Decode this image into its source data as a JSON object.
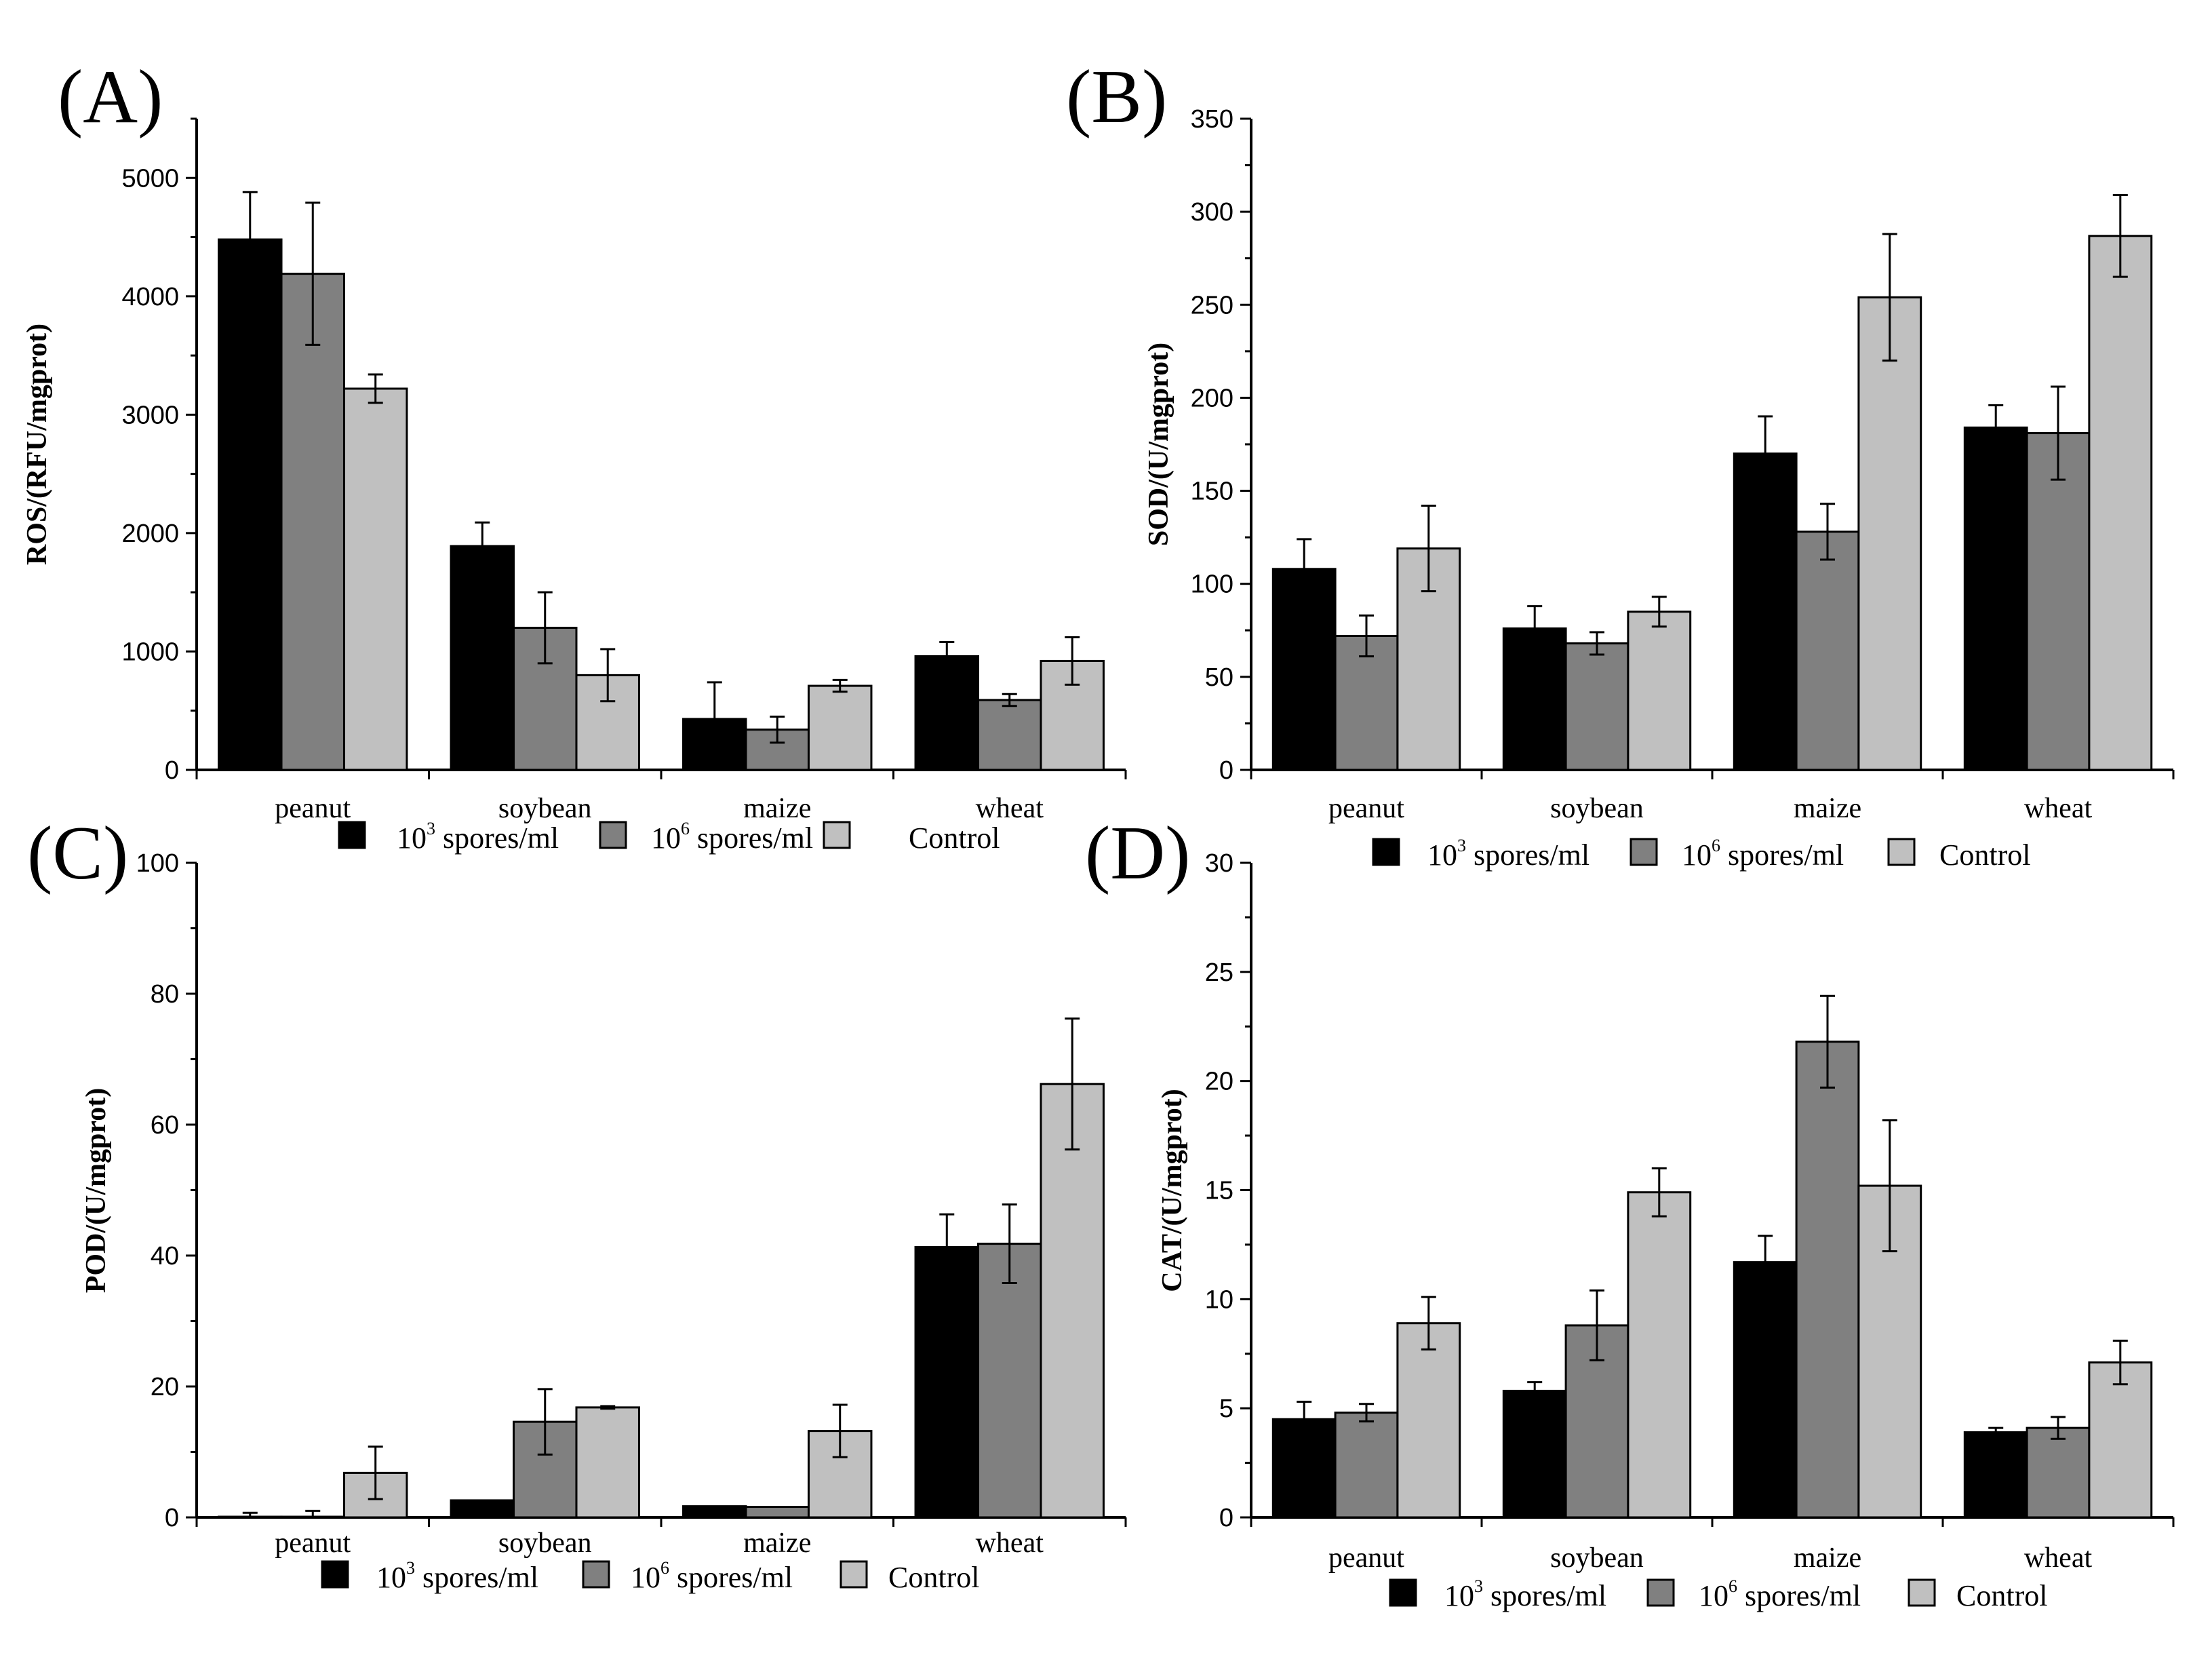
{
  "figure": {
    "colors": {
      "s1": "#000000",
      "s2": "#808080",
      "s3": "#c0c0c0"
    }
  },
  "chart_data": [
    {
      "type": "bar",
      "panel": "(A)",
      "ylabel": "ROS/(RFU/mgprot)",
      "categories": [
        "peanut",
        "soybean",
        "maize",
        "wheat"
      ],
      "ylim": [
        0,
        5500
      ],
      "yticks": [
        0,
        1000,
        2000,
        3000,
        4000,
        5000
      ],
      "legend": {
        "placement": "bottom",
        "entries": [
          {
            "base": "10",
            "sup": "3",
            "rest": " spores/ml"
          },
          {
            "base": "10",
            "sup": "6",
            "rest": " spores/ml"
          },
          {
            "base": "Control",
            "sup": "",
            "rest": ""
          }
        ]
      },
      "series": [
        {
          "name": "10^3 spores/ml",
          "values": [
            4480,
            1890,
            430,
            960
          ],
          "errors": [
            400,
            200,
            310,
            120
          ]
        },
        {
          "name": "10^6 spores/ml",
          "values": [
            4190,
            1200,
            340,
            590
          ],
          "errors": [
            600,
            300,
            110,
            50
          ]
        },
        {
          "name": "Control",
          "values": [
            3220,
            800,
            710,
            920
          ],
          "errors": [
            120,
            220,
            50,
            200
          ]
        }
      ]
    },
    {
      "type": "bar",
      "panel": "(B)",
      "ylabel": "SOD/(U/mgprot)",
      "categories": [
        "peanut",
        "soybean",
        "maize",
        "wheat"
      ],
      "ylim": [
        0,
        350
      ],
      "yticks": [
        0,
        50,
        100,
        150,
        200,
        250,
        300,
        350
      ],
      "legend": {
        "placement": "bottom",
        "entries": [
          {
            "base": "10",
            "sup": "3",
            "rest": " spores/ml"
          },
          {
            "base": "10",
            "sup": "6",
            "rest": " spores/ml"
          },
          {
            "base": "Control",
            "sup": "",
            "rest": ""
          }
        ]
      },
      "series": [
        {
          "name": "10^3 spores/ml",
          "values": [
            108,
            76,
            170,
            184
          ],
          "errors": [
            16,
            12,
            20,
            12
          ]
        },
        {
          "name": "10^6 spores/ml",
          "values": [
            72,
            68,
            128,
            181
          ],
          "errors": [
            11,
            6,
            15,
            25
          ]
        },
        {
          "name": "Control",
          "values": [
            119,
            85,
            254,
            287
          ],
          "errors": [
            23,
            8,
            34,
            22
          ]
        }
      ]
    },
    {
      "type": "bar",
      "panel": "(C)",
      "ylabel": "POD/(U/mgprot)",
      "categories": [
        "peanut",
        "soybean",
        "maize",
        "wheat"
      ],
      "ylim": [
        0,
        100
      ],
      "yticks": [
        0,
        20,
        40,
        60,
        80,
        100
      ],
      "legend": {
        "placement": "bottom",
        "entries": [
          {
            "base": "10",
            "sup": "3",
            "rest": " spores/ml"
          },
          {
            "base": "10",
            "sup": "6",
            "rest": " spores/ml"
          },
          {
            "base": "Control",
            "sup": "",
            "rest": ""
          }
        ]
      },
      "series": [
        {
          "name": "10^3 spores/ml",
          "values": [
            0.1,
            2.6,
            1.7,
            41.3
          ],
          "errors": [
            0.6,
            0,
            0,
            5
          ]
        },
        {
          "name": "10^6 spores/ml",
          "values": [
            0.1,
            14.6,
            1.6,
            41.8
          ],
          "errors": [
            0.9,
            5,
            0,
            6
          ]
        },
        {
          "name": "Control",
          "values": [
            6.8,
            16.8,
            13.2,
            66.2
          ],
          "errors": [
            4,
            0.2,
            4,
            10
          ]
        }
      ]
    },
    {
      "type": "bar",
      "panel": "(D)",
      "ylabel": "CAT/(U/mgprot)",
      "categories": [
        "peanut",
        "soybean",
        "maize",
        "wheat"
      ],
      "ylim": [
        0,
        30
      ],
      "yticks": [
        0,
        5,
        10,
        15,
        20,
        25,
        30
      ],
      "legend": {
        "placement": "bottom",
        "entries": [
          {
            "base": "10",
            "sup": "3",
            "rest": " spores/ml"
          },
          {
            "base": "10",
            "sup": "6",
            "rest": " spores/ml"
          },
          {
            "base": "Control",
            "sup": "",
            "rest": ""
          }
        ]
      },
      "series": [
        {
          "name": "10^3 spores/ml",
          "values": [
            4.5,
            5.8,
            11.7,
            3.9
          ],
          "errors": [
            0.8,
            0.4,
            1.2,
            0.2
          ]
        },
        {
          "name": "10^6 spores/ml",
          "values": [
            4.8,
            8.8,
            21.8,
            4.1
          ],
          "errors": [
            0.4,
            1.6,
            2.1,
            0.5
          ]
        },
        {
          "name": "Control",
          "values": [
            8.9,
            14.9,
            15.2,
            7.1
          ],
          "errors": [
            1.2,
            1.1,
            3,
            1
          ]
        }
      ]
    }
  ]
}
